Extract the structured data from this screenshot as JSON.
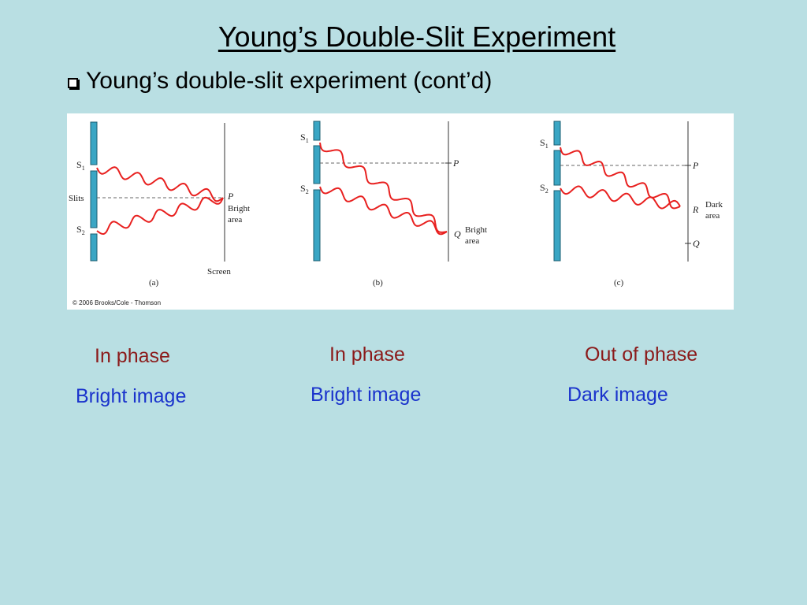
{
  "slide": {
    "title": "Young’s Double-Slit Experiment",
    "bullet": "Young’s double-slit experiment (cont’d)"
  },
  "figure": {
    "copyright": "© 2006 Brooks/Cole - Thomson",
    "panels": [
      {
        "id": "a",
        "s1": "S",
        "s1_sub": "1",
        "s2": "S",
        "s2_sub": "2",
        "slits_label": "Slits",
        "point_label": "P",
        "area_line1": "Bright",
        "area_line2": "area",
        "screen_label": "Screen",
        "caption": "(a)"
      },
      {
        "id": "b",
        "s1": "S",
        "s1_sub": "1",
        "s2": "S",
        "s2_sub": "2",
        "point_p": "P",
        "point_q": "Q",
        "area_line1": "Bright",
        "area_line2": "area",
        "caption": "(b)"
      },
      {
        "id": "c",
        "s1": "S",
        "s1_sub": "1",
        "s2": "S",
        "s2_sub": "2",
        "point_p": "P",
        "point_r": "R",
        "point_q": "Q",
        "area_line1": "Dark",
        "area_line2": "area",
        "caption": "(c)"
      }
    ]
  },
  "captions": [
    {
      "phase": "In phase",
      "image": "Bright image"
    },
    {
      "phase": "In phase",
      "image": "Bright image"
    },
    {
      "phase": "Out of phase",
      "image": "Dark image"
    }
  ],
  "colors": {
    "background": "#b9dfe3",
    "wave": "#e8201f",
    "barrier": "#3aa6c4",
    "phase_text": "#8b1a1a",
    "image_text": "#1a33cc"
  }
}
